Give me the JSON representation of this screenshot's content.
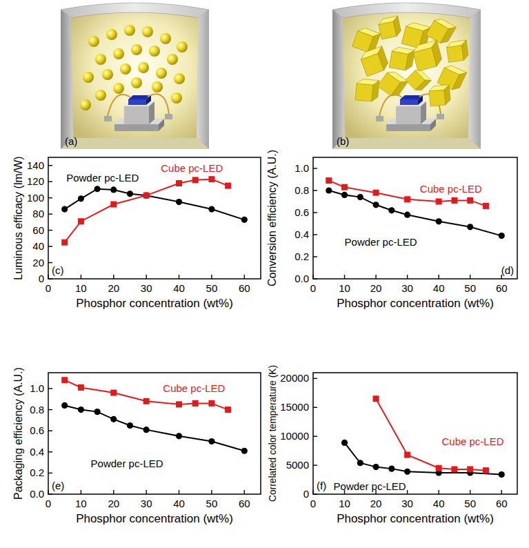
{
  "illustrations": [
    {
      "label": "(a)"
    },
    {
      "label": "(b)"
    }
  ],
  "chart_data": [
    {
      "type": "line",
      "annotations": [
        "(c)"
      ],
      "x_label": "Phosphor concentration (wt%)",
      "y_label": "Luminous efficacy (lm/W)",
      "xlim": [
        0,
        65
      ],
      "xticks": [
        0,
        10,
        20,
        30,
        40,
        50,
        60
      ],
      "ylim": [
        0,
        150
      ],
      "yticks": [
        0,
        20,
        40,
        60,
        80,
        100,
        120,
        140
      ],
      "series": [
        {
          "name": "Powder pc-LED",
          "color": "#000000",
          "marker": "circle",
          "x": [
            5,
            10,
            15,
            20,
            25,
            30,
            40,
            50,
            60
          ],
          "values": [
            86,
            99,
            111,
            110,
            105,
            103,
            95,
            86,
            73
          ]
        },
        {
          "name": "Cube pc-LED",
          "color": "#e31a1c",
          "marker": "square",
          "x": [
            5,
            10,
            20,
            30,
            40,
            45,
            50,
            55
          ],
          "values": [
            45,
            71,
            92,
            103,
            118,
            122,
            123,
            115
          ]
        }
      ]
    },
    {
      "type": "line",
      "annotations": [
        "(d)"
      ],
      "x_label": "Phosphor concentration (wt%)",
      "y_label": "Conversion efficiency (A.U.)",
      "xlim": [
        0,
        65
      ],
      "xticks": [
        0,
        10,
        20,
        30,
        40,
        50,
        60
      ],
      "ylim": [
        0,
        1.1
      ],
      "yticks": [
        {
          "value": 0,
          "label": "0.0"
        },
        0.2,
        0.4,
        0.6,
        0.8,
        {
          "value": 1,
          "label": "1.0"
        }
      ],
      "series": [
        {
          "name": "Powder pc-LED",
          "color": "#000000",
          "marker": "circle",
          "x": [
            5,
            10,
            15,
            20,
            25,
            30,
            40,
            50,
            60
          ],
          "values": [
            0.8,
            0.76,
            0.74,
            0.67,
            0.62,
            0.58,
            0.52,
            0.47,
            0.39
          ]
        },
        {
          "name": "Cube pc-LED",
          "color": "#e31a1c",
          "marker": "square",
          "x": [
            5,
            10,
            20,
            30,
            40,
            45,
            50,
            55
          ],
          "values": [
            0.89,
            0.83,
            0.78,
            0.72,
            0.7,
            0.71,
            0.71,
            0.66
          ]
        }
      ]
    },
    {
      "type": "line",
      "annotations": [
        "(e)"
      ],
      "x_label": "Phosphor concentration (wt%)",
      "y_label": "Packaging efficiency (A.U.)",
      "xlim": [
        0,
        65
      ],
      "xticks": [
        0,
        10,
        20,
        30,
        40,
        50,
        60
      ],
      "ylim": [
        0,
        1.15
      ],
      "yticks": [
        {
          "value": 0,
          "label": "0.0"
        },
        0.2,
        0.4,
        0.6,
        0.8,
        {
          "value": 1,
          "label": "1.0"
        }
      ],
      "series": [
        {
          "name": "Powder pc-LED",
          "color": "#000000",
          "marker": "circle",
          "x": [
            5,
            10,
            15,
            20,
            25,
            30,
            40,
            50,
            60
          ],
          "values": [
            0.84,
            0.8,
            0.78,
            0.71,
            0.65,
            0.61,
            0.55,
            0.5,
            0.41
          ]
        },
        {
          "name": "Cube pc-LED",
          "color": "#e31a1c",
          "marker": "square",
          "x": [
            5,
            10,
            20,
            30,
            40,
            45,
            50,
            55
          ],
          "values": [
            1.08,
            1.01,
            0.96,
            0.88,
            0.85,
            0.86,
            0.86,
            0.8
          ]
        }
      ]
    },
    {
      "type": "line",
      "annotations": [
        "(f)"
      ],
      "x_label": "Phosphor concentration (wt%)",
      "y_label": "Correlated color temperature (K)",
      "xlim": [
        0,
        65
      ],
      "xticks": [
        0,
        10,
        20,
        30,
        40,
        50,
        60
      ],
      "ylim": [
        0,
        21000
      ],
      "yticks": [
        0,
        5000,
        10000,
        15000,
        20000
      ],
      "series": [
        {
          "name": "Powder pc-LED",
          "color": "#000000",
          "marker": "circle",
          "x": [
            10,
            15,
            20,
            25,
            30,
            40,
            50,
            60
          ],
          "values": [
            8900,
            5400,
            4700,
            4400,
            3900,
            3700,
            3700,
            3400
          ]
        },
        {
          "name": "Cube pc-LED",
          "color": "#e31a1c",
          "marker": "square",
          "x": [
            20,
            30,
            40,
            45,
            50,
            55
          ],
          "values": [
            16500,
            6800,
            4500,
            4300,
            4300,
            4100
          ]
        }
      ]
    }
  ]
}
